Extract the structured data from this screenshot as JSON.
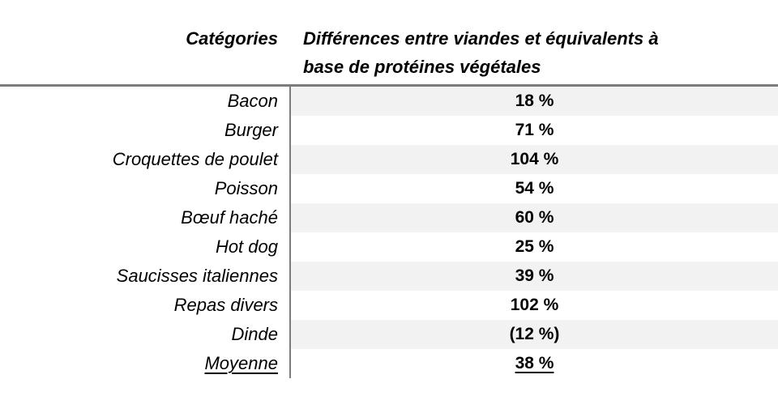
{
  "document": {
    "header": {
      "categories_label": "Catégories",
      "differences_label": "Différences entre viandes et équivalents à\nbase de protéines végétales"
    },
    "rows": [
      {
        "category": "Bacon",
        "value": "18 %"
      },
      {
        "category": "Burger",
        "value": "71 %"
      },
      {
        "category": "Croquettes de poulet",
        "value": "104 %"
      },
      {
        "category": "Poisson",
        "value": "54 %"
      },
      {
        "category": "Bœuf haché",
        "value": "60 %"
      },
      {
        "category": "Hot dog",
        "value": "25 %"
      },
      {
        "category": "Saucisses italiennes",
        "value": "39 %"
      },
      {
        "category": "Repas divers",
        "value": "102 %"
      },
      {
        "category": "Dinde",
        "value": "(12 %)"
      },
      {
        "category": "Moyenne",
        "value": "38 %"
      }
    ],
    "colors": {
      "stripe": "#f2f2f2",
      "rule": "#7c7c7c",
      "text": "#000000"
    }
  },
  "chart_data": {
    "type": "table",
    "title": "",
    "columns": [
      "Catégories",
      "Différences entre viandes et équivalents à base de protéines végétales"
    ],
    "categories": [
      "Bacon",
      "Burger",
      "Croquettes de poulet",
      "Poisson",
      "Bœuf haché",
      "Hot dog",
      "Saucisses italiennes",
      "Repas divers",
      "Dinde",
      "Moyenne"
    ],
    "values_percent": [
      18,
      71,
      104,
      54,
      60,
      25,
      39,
      102,
      -12,
      38
    ],
    "values_display": [
      "18 %",
      "71 %",
      "104 %",
      "54 %",
      "60 %",
      "25 %",
      "39 %",
      "102 %",
      "(12 %)",
      "38 %"
    ]
  }
}
